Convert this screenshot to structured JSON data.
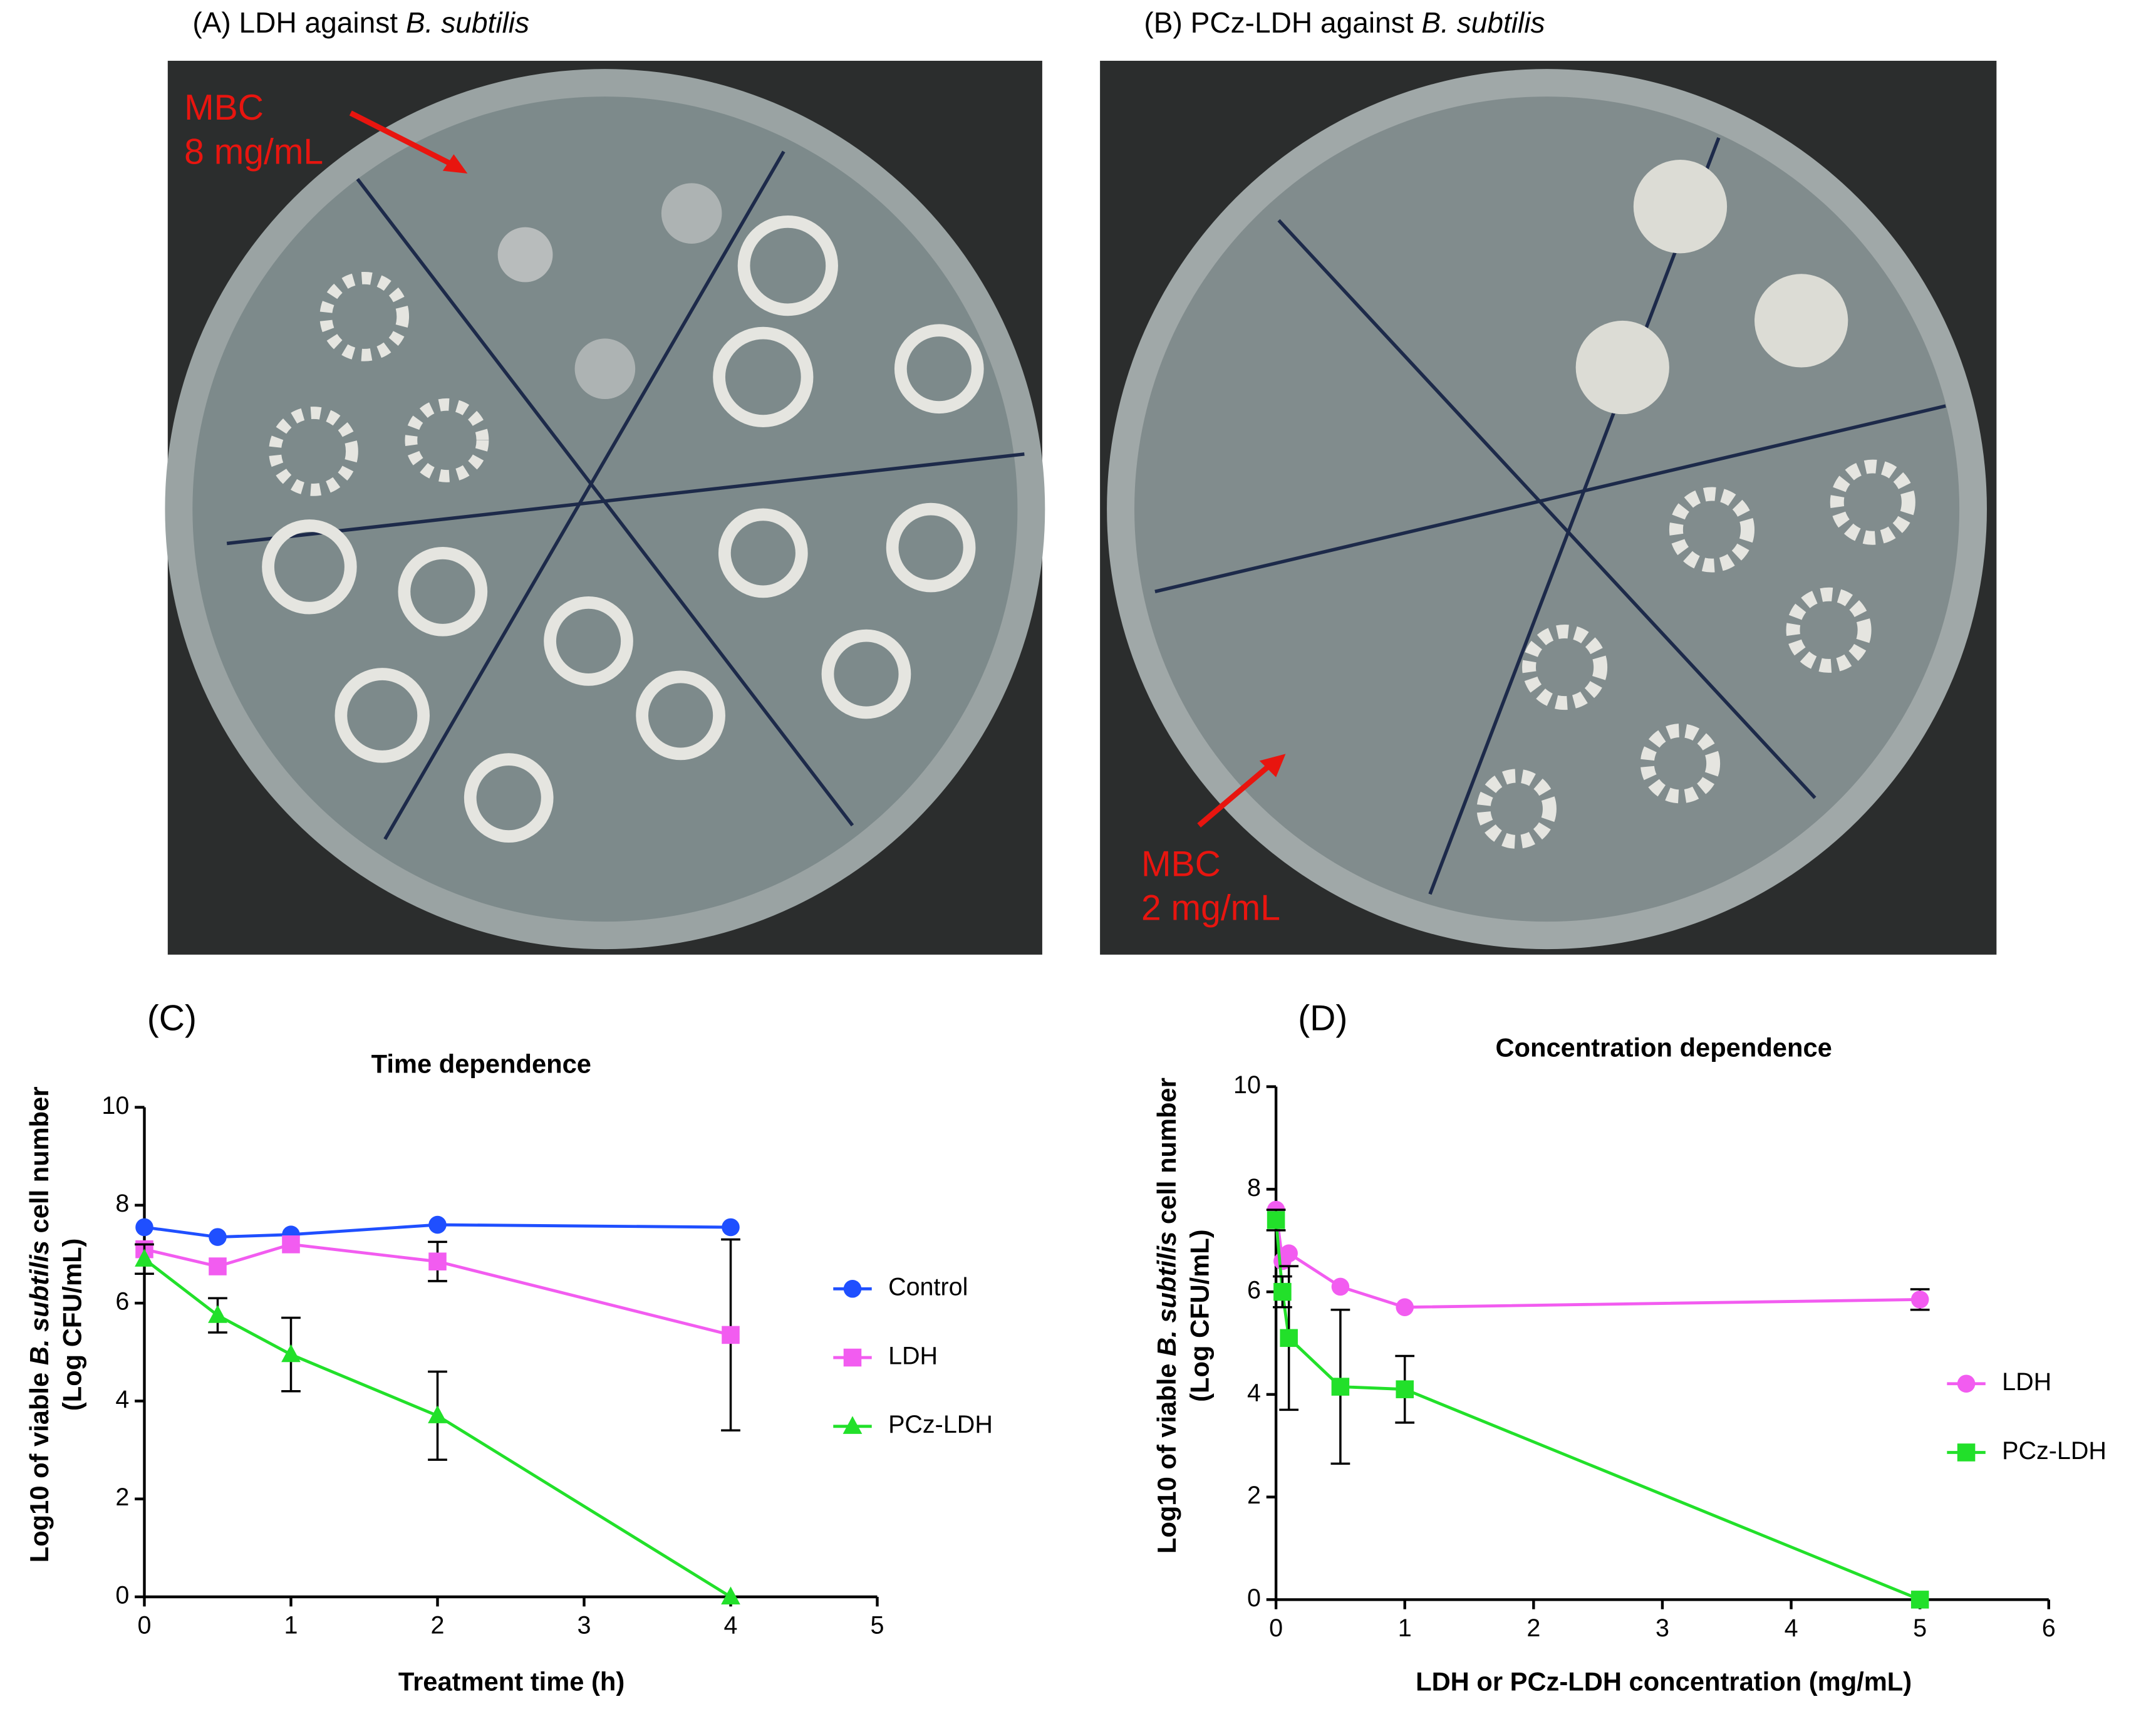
{
  "panels": [
    {
      "title": [
        "(A)  LDH against ",
        "B. subtilis"
      ],
      "note": [
        "MBC",
        "8 mg/mL"
      ]
    },
    {
      "title": [
        "(B)  PCz-LDH against ",
        "B. subtilis"
      ],
      "note": [
        "MBC",
        "2 mg/mL"
      ]
    }
  ],
  "chart_data": [
    {
      "type": "line",
      "panel": "(C)",
      "title": "Time dependence",
      "x_label": "Treatment time (h)",
      "y_label": [
        "Log10 of viable ",
        "B. subtilis",
        " cell number",
        "(Log CFU/mL)"
      ],
      "x": [
        0,
        0.5,
        1,
        2,
        4
      ],
      "xlim": [
        0,
        5
      ],
      "xticks": [
        0,
        1,
        2,
        3,
        4,
        5
      ],
      "ylim": [
        0,
        10
      ],
      "yticks": [
        0,
        2,
        4,
        6,
        8,
        10
      ],
      "legend": "right",
      "series": [
        {
          "name": "Control",
          "color": "#1f4fff",
          "marker": "circle",
          "values": [
            7.55,
            7.35,
            7.4,
            7.6,
            7.55
          ],
          "errors": [
            null,
            null,
            null,
            null,
            null
          ]
        },
        {
          "name": "LDH",
          "color": "#f25cf0",
          "marker": "square",
          "values": [
            7.1,
            6.75,
            7.2,
            6.85,
            5.35
          ],
          "errors": [
            null,
            null,
            null,
            0.4,
            1.95
          ]
        },
        {
          "name": "PCz-LDH",
          "color": "#22e02a",
          "marker": "triangle",
          "values": [
            6.9,
            5.75,
            4.95,
            3.7,
            0
          ],
          "errors": [
            0.3,
            0.35,
            0.75,
            0.9,
            null
          ]
        }
      ]
    },
    {
      "type": "line",
      "panel": "(D)",
      "title": "Concentration dependence",
      "x_label": "LDH or PCz-LDH concentration (mg/mL)",
      "y_label": [
        "Log10 of viable ",
        "B. subtilis",
        " cell number",
        "(Log CFU/mL)"
      ],
      "x": [
        0,
        0.05,
        0.1,
        0.5,
        1,
        5
      ],
      "xlim": [
        0,
        6
      ],
      "xticks": [
        0,
        1,
        2,
        3,
        4,
        5,
        6
      ],
      "ylim": [
        0,
        10
      ],
      "yticks": [
        0,
        2,
        4,
        6,
        8,
        10
      ],
      "legend": "right",
      "series": [
        {
          "name": "LDH",
          "color": "#f25cf0",
          "marker": "circle",
          "values": [
            7.6,
            6.6,
            6.75,
            6.1,
            5.7,
            5.85
          ],
          "errors": [
            null,
            null,
            null,
            null,
            null,
            0.2
          ]
        },
        {
          "name": "PCz-LDH",
          "color": "#22e02a",
          "marker": "square",
          "values": [
            7.4,
            6.0,
            5.1,
            4.15,
            4.1,
            0
          ],
          "errors": [
            0.2,
            0.3,
            1.4,
            1.5,
            0.65,
            null
          ]
        }
      ]
    }
  ]
}
